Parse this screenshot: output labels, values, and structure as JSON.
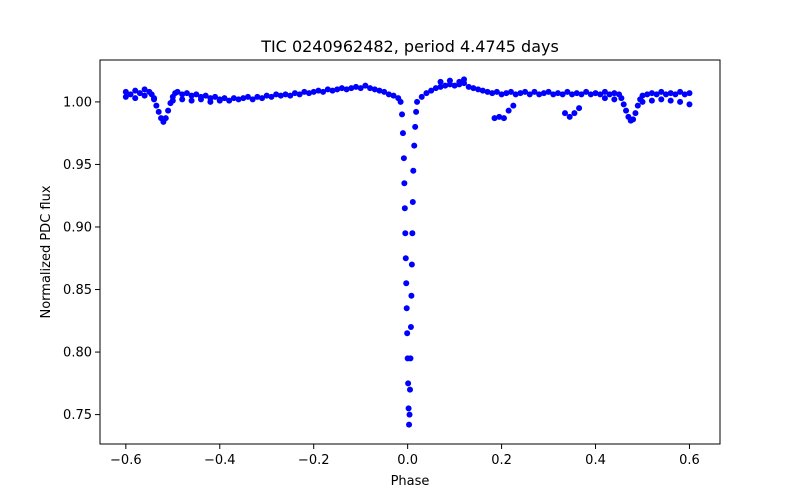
{
  "chart_data": {
    "type": "scatter",
    "title": "TIC 0240962482, period 4.4745 days",
    "xlabel": "Phase",
    "ylabel": "Normalized PDC flux",
    "xlim": [
      -0.655,
      0.665
    ],
    "ylim": [
      0.7265,
      1.0335
    ],
    "xticks": [
      -0.6,
      -0.4,
      -0.2,
      0.0,
      0.2,
      0.4,
      0.6
    ],
    "xtick_labels": [
      "−0.6",
      "−0.4",
      "−0.2",
      "0.0",
      "0.2",
      "0.4",
      "0.6"
    ],
    "yticks": [
      0.75,
      0.8,
      0.85,
      0.9,
      0.95,
      1.0
    ],
    "ytick_labels": [
      "0.75",
      "0.80",
      "0.85",
      "0.90",
      "0.95",
      "1.00"
    ],
    "grid": false,
    "marker_color": "#0000ff",
    "series": [
      {
        "points": [
          [
            -0.6,
            1.008
          ],
          [
            -0.59,
            1.006
          ],
          [
            -0.58,
            1.009
          ],
          [
            -0.57,
            1.007
          ],
          [
            -0.56,
            1.01
          ],
          [
            -0.55,
            1.008
          ],
          [
            -0.545,
            1.006
          ],
          [
            -0.54,
            1.003
          ],
          [
            -0.535,
            0.997
          ],
          [
            -0.53,
            0.992
          ],
          [
            -0.525,
            0.987
          ],
          [
            -0.52,
            0.984
          ],
          [
            -0.515,
            0.987
          ],
          [
            -0.51,
            0.993
          ],
          [
            -0.505,
            0.999
          ],
          [
            -0.5,
            1.004
          ],
          [
            -0.495,
            1.007
          ],
          [
            -0.49,
            1.008
          ],
          [
            -0.48,
            1.006
          ],
          [
            -0.47,
            1.007
          ],
          [
            -0.46,
            1.005
          ],
          [
            -0.45,
            1.006
          ],
          [
            -0.44,
            1.004
          ],
          [
            -0.43,
            1.005
          ],
          [
            -0.42,
            1.003
          ],
          [
            -0.41,
            1.004
          ],
          [
            -0.4,
            1.002
          ],
          [
            -0.39,
            1.003
          ],
          [
            -0.38,
            1.001
          ],
          [
            -0.37,
            1.003
          ],
          [
            -0.36,
            1.002
          ],
          [
            -0.35,
            1.003
          ],
          [
            -0.34,
            1.004
          ],
          [
            -0.33,
            1.002
          ],
          [
            -0.32,
            1.004
          ],
          [
            -0.31,
            1.003
          ],
          [
            -0.3,
            1.005
          ],
          [
            -0.29,
            1.004
          ],
          [
            -0.28,
            1.006
          ],
          [
            -0.27,
            1.005
          ],
          [
            -0.26,
            1.006
          ],
          [
            -0.25,
            1.005
          ],
          [
            -0.24,
            1.007
          ],
          [
            -0.23,
            1.006
          ],
          [
            -0.22,
            1.008
          ],
          [
            -0.21,
            1.007
          ],
          [
            -0.2,
            1.008
          ],
          [
            -0.19,
            1.009
          ],
          [
            -0.18,
            1.008
          ],
          [
            -0.17,
            1.01
          ],
          [
            -0.16,
            1.009
          ],
          [
            -0.15,
            1.01
          ],
          [
            -0.14,
            1.011
          ],
          [
            -0.13,
            1.01
          ],
          [
            -0.12,
            1.011
          ],
          [
            -0.11,
            1.012
          ],
          [
            -0.1,
            1.011
          ],
          [
            -0.09,
            1.013
          ],
          [
            -0.08,
            1.011
          ],
          [
            -0.07,
            1.01
          ],
          [
            -0.06,
            1.009
          ],
          [
            -0.05,
            1.008
          ],
          [
            -0.04,
            1.006
          ],
          [
            -0.03,
            1.005
          ],
          [
            -0.02,
            1.003
          ],
          [
            -0.015,
            1.0
          ],
          [
            -0.012,
            0.99
          ],
          [
            -0.01,
            0.975
          ],
          [
            -0.008,
            0.955
          ],
          [
            -0.007,
            0.935
          ],
          [
            -0.006,
            0.915
          ],
          [
            -0.005,
            0.895
          ],
          [
            -0.004,
            0.875
          ],
          [
            -0.003,
            0.855
          ],
          [
            -0.002,
            0.835
          ],
          [
            -0.001,
            0.815
          ],
          [
            0.0,
            0.795
          ],
          [
            0.001,
            0.775
          ],
          [
            0.002,
            0.755
          ],
          [
            0.003,
            0.742
          ],
          [
            0.004,
            0.75
          ],
          [
            0.005,
            0.77
          ],
          [
            0.006,
            0.795
          ],
          [
            0.007,
            0.82
          ],
          [
            0.008,
            0.845
          ],
          [
            0.009,
            0.87
          ],
          [
            0.01,
            0.895
          ],
          [
            0.011,
            0.92
          ],
          [
            0.012,
            0.945
          ],
          [
            0.014,
            0.965
          ],
          [
            0.016,
            0.98
          ],
          [
            0.018,
            0.992
          ],
          [
            0.02,
            1.0
          ],
          [
            0.03,
            1.004
          ],
          [
            0.04,
            1.007
          ],
          [
            0.05,
            1.009
          ],
          [
            0.06,
            1.011
          ],
          [
            0.07,
            1.012
          ],
          [
            0.08,
            1.013
          ],
          [
            0.09,
            1.014
          ],
          [
            0.1,
            1.013
          ],
          [
            0.11,
            1.014
          ],
          [
            0.12,
            1.015
          ],
          [
            0.13,
            1.012
          ],
          [
            0.14,
            1.011
          ],
          [
            0.15,
            1.01
          ],
          [
            0.16,
            1.009
          ],
          [
            0.17,
            1.008
          ],
          [
            0.18,
            1.007
          ],
          [
            0.19,
            1.008
          ],
          [
            0.2,
            1.006
          ],
          [
            0.21,
            1.007
          ],
          [
            0.22,
            1.008
          ],
          [
            0.23,
            1.006
          ],
          [
            0.24,
            1.007
          ],
          [
            0.25,
            1.008
          ],
          [
            0.26,
            1.006
          ],
          [
            0.27,
            1.008
          ],
          [
            0.28,
            1.006
          ],
          [
            0.29,
            1.007
          ],
          [
            0.3,
            1.008
          ],
          [
            0.31,
            1.006
          ],
          [
            0.32,
            1.007
          ],
          [
            0.33,
            1.006
          ],
          [
            0.34,
            1.008
          ],
          [
            0.35,
            1.006
          ],
          [
            0.36,
            1.007
          ],
          [
            0.37,
            1.006
          ],
          [
            0.38,
            1.008
          ],
          [
            0.39,
            1.006
          ],
          [
            0.4,
            1.007
          ],
          [
            0.41,
            1.006
          ],
          [
            0.42,
            1.008
          ],
          [
            0.43,
            1.006
          ],
          [
            0.44,
            1.007
          ],
          [
            0.45,
            1.006
          ],
          [
            0.455,
            1.003
          ],
          [
            0.46,
            0.998
          ],
          [
            0.465,
            0.993
          ],
          [
            0.47,
            0.988
          ],
          [
            0.475,
            0.985
          ],
          [
            0.48,
            0.986
          ],
          [
            0.485,
            0.991
          ],
          [
            0.49,
            0.997
          ],
          [
            0.495,
            1.002
          ],
          [
            0.5,
            1.005
          ],
          [
            0.51,
            1.006
          ],
          [
            0.52,
            1.007
          ],
          [
            0.53,
            1.006
          ],
          [
            0.54,
            1.008
          ],
          [
            0.55,
            1.006
          ],
          [
            0.56,
            1.007
          ],
          [
            0.57,
            1.006
          ],
          [
            0.58,
            1.008
          ],
          [
            0.59,
            1.006
          ],
          [
            0.6,
            1.007
          ],
          [
            -0.6,
            1.004
          ],
          [
            -0.58,
            1.003
          ],
          [
            -0.56,
            1.005
          ],
          [
            -0.54,
            1.002
          ],
          [
            -0.5,
            1.001
          ],
          [
            -0.48,
            1.002
          ],
          [
            -0.46,
            1.001
          ],
          [
            -0.44,
            1.002
          ],
          [
            -0.42,
            1.0
          ],
          [
            -0.4,
            1.001
          ],
          [
            0.42,
            1.003
          ],
          [
            0.44,
            1.002
          ],
          [
            0.5,
            1.0
          ],
          [
            0.52,
            1.001
          ],
          [
            0.54,
            1.002
          ],
          [
            0.56,
            1.001
          ],
          [
            0.58,
            1.0
          ],
          [
            0.6,
            0.998
          ],
          [
            0.185,
            0.987
          ],
          [
            0.195,
            0.988
          ],
          [
            0.205,
            0.987
          ],
          [
            0.215,
            0.993
          ],
          [
            0.225,
            0.997
          ],
          [
            0.335,
            0.991
          ],
          [
            0.345,
            0.988
          ],
          [
            0.355,
            0.991
          ],
          [
            0.365,
            0.995
          ],
          [
            0.07,
            1.016
          ],
          [
            0.09,
            1.017
          ],
          [
            0.11,
            1.016
          ],
          [
            0.12,
            1.018
          ]
        ]
      }
    ]
  }
}
